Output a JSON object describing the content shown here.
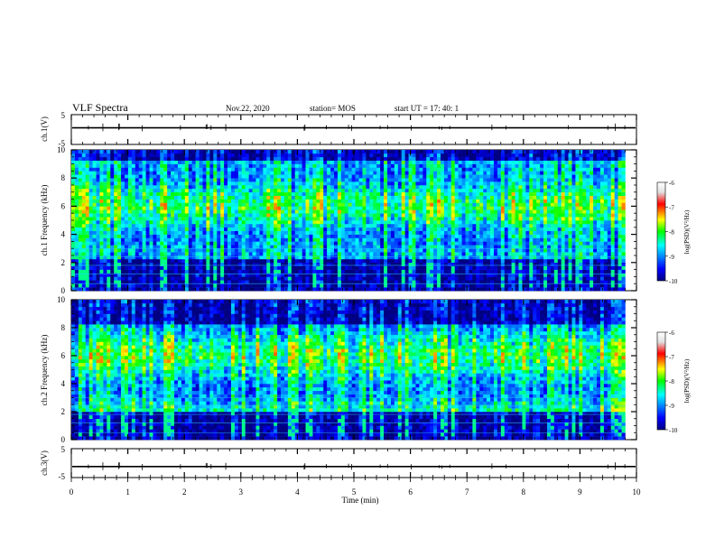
{
  "header": {
    "title": "VLF Spectra",
    "date": "Nov.22, 2020",
    "station": "station= MOS",
    "start_ut": "start  UT =    17: 40: 1"
  },
  "chart_data": [
    {
      "type": "line",
      "panel": "ch1-waveform",
      "ylabel": "ch.1(V)",
      "ylim": [
        -5,
        5
      ],
      "y_ticks": [
        "5",
        "-5"
      ],
      "x": [
        0,
        10
      ],
      "values": [
        0.6,
        0.6
      ]
    },
    {
      "type": "heatmap",
      "panel": "ch1-spectrogram",
      "ylabel": "ch.1  Frequency  (kHz)",
      "ylim": [
        0,
        10
      ],
      "y_ticks": [
        "0",
        "2",
        "4",
        "6",
        "8",
        "10"
      ],
      "xlim": [
        0,
        9.8
      ],
      "colorbar": {
        "label": "log(PSD)(V²/Hz)",
        "range": [
          -10,
          -6
        ],
        "ticks": [
          "-6",
          "-7",
          "-8",
          "-9",
          "-10"
        ]
      }
    },
    {
      "type": "heatmap",
      "panel": "ch2-spectrogram",
      "ylabel": "ch.2  Frequency  (kHz)",
      "ylim": [
        0,
        10
      ],
      "y_ticks": [
        "0",
        "2",
        "4",
        "6",
        "8",
        "10"
      ],
      "xlim": [
        0,
        9.8
      ],
      "colorbar": {
        "label": "log(PSD)(V²/Hz)",
        "range": [
          -10,
          -6
        ],
        "ticks": [
          "-6",
          "-7",
          "-8",
          "-9",
          "-10"
        ]
      }
    },
    {
      "type": "line",
      "panel": "ch3-waveform",
      "ylabel": "ch.3(V)",
      "ylim": [
        -5,
        5
      ],
      "y_ticks": [
        "5",
        "-5"
      ],
      "x": [
        0,
        10
      ],
      "values": [
        -1.2,
        -1.2
      ]
    }
  ],
  "time_axis": {
    "label": "Time  (min)",
    "range": [
      0,
      10
    ],
    "ticks": [
      "0",
      "1",
      "2",
      "3",
      "4",
      "5",
      "6",
      "7",
      "8",
      "9",
      "10"
    ]
  }
}
